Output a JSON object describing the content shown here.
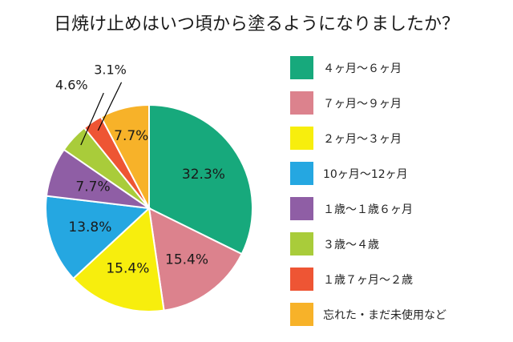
{
  "chart_data": {
    "type": "pie",
    "title": "日焼け止めはいつ頃から塗るようになりましたか？",
    "slices": [
      {
        "label": "４ヶ月〜６ヶ月",
        "value": 32.3,
        "value_label": "32.3%",
        "color": "#17a97c"
      },
      {
        "label": "７ヶ月〜９ヶ月",
        "value": 15.4,
        "value_label": "15.4%",
        "color": "#dc828d"
      },
      {
        "label": "２ヶ月〜３ヶ月",
        "value": 15.4,
        "value_label": "15.4%",
        "color": "#f7ee0d"
      },
      {
        "label": "10ヶ月〜12ヶ月",
        "value": 13.8,
        "value_label": "13.8%",
        "color": "#25a7e1"
      },
      {
        "label": "１歳〜１歳６ヶ月",
        "value": 7.7,
        "value_label": "7.7%",
        "color": "#8f5ea5"
      },
      {
        "label": "３歳〜４歳",
        "value": 4.6,
        "value_label": "4.6%",
        "color": "#a9cc3a"
      },
      {
        "label": "１歳７ヶ月〜２歳",
        "value": 3.1,
        "value_label": "3.1%",
        "color": "#ee5534"
      },
      {
        "label": "忘れた・まだ未使用など",
        "value": 7.7,
        "value_label": "7.7%",
        "color": "#f7b229"
      }
    ],
    "legend_position": "right"
  }
}
